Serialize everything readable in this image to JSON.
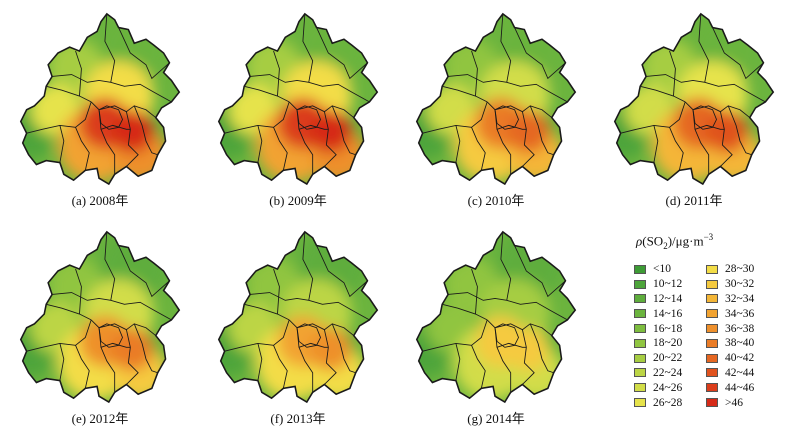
{
  "colors": {
    "classes": [
      "#3d9b35",
      "#4da43a",
      "#5ead3c",
      "#6bb43e",
      "#7dbd3f",
      "#90c541",
      "#a6cd42",
      "#bcd545",
      "#d2dd48",
      "#e6e34b",
      "#f3dd47",
      "#f5ca3f",
      "#f4b637",
      "#f2a331",
      "#ee902c",
      "#ea7c27",
      "#e56722",
      "#e0521e",
      "#db3d1b",
      "#d62a18"
    ],
    "border": "#1a1a1a"
  },
  "maps": [
    {
      "caption": "(a) 2008年",
      "level": 0.95
    },
    {
      "caption": "(b) 2009年",
      "level": 1.0
    },
    {
      "caption": "(c) 2010年",
      "level": 0.72
    },
    {
      "caption": "(d) 2011年",
      "level": 0.8
    },
    {
      "caption": "(e) 2012年",
      "level": 0.6
    },
    {
      "caption": "(f) 2013年",
      "level": 0.5
    },
    {
      "caption": "(g) 2014年",
      "level": 0.28
    }
  ],
  "legend": {
    "title_rho": "ρ",
    "title_so": "(SO",
    "title_sub": "2",
    "title_unit": ")/μg·m",
    "title_sup": "−3",
    "entries": [
      "<10",
      "10~12",
      "12~14",
      "14~16",
      "16~18",
      "18~20",
      "20~22",
      "22~24",
      "24~26",
      "26~28",
      "28~30",
      "30~32",
      "32~34",
      "34~36",
      "36~38",
      "38~40",
      "40~42",
      "42~44",
      "44~46",
      ">46"
    ]
  }
}
